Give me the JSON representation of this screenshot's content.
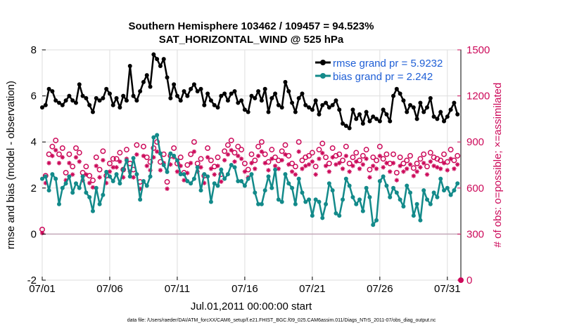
{
  "chart_data": {
    "type": "line",
    "title_line1": "Southern Hemisphere 103462 / 109457 = 94.523%",
    "title_line2": "SAT_HORIZONTAL_WIND @ 525 hPa",
    "xlabel": "Jul.01,2011 00:00:00 start",
    "ylabel_left": "rmse and bias (model - observation)",
    "ylabel_right": "# of obs: o=possible; ×=assimilated",
    "footer": "data file: /Users/raeder/DAI/ATM_forcXX/CAM6_setup/f.e21.FHIST_BGC.f09_025.CAM6assim.011/Diags_NTrS_2011-07/obs_diag_output.nc",
    "x_tick_labels": [
      "07/01",
      "07/06",
      "07/11",
      "07/16",
      "07/21",
      "07/26",
      "07/31"
    ],
    "x_tick_days": [
      1,
      6,
      11,
      16,
      21,
      26,
      31
    ],
    "xlim": [
      1,
      32
    ],
    "ylim_left": [
      -2,
      8
    ],
    "y_ticks_left": [
      -2,
      0,
      2,
      4,
      6,
      8
    ],
    "ylim_right": [
      0,
      1500
    ],
    "y_ticks_right": [
      0,
      300,
      600,
      900,
      1200,
      1500
    ],
    "legend": [
      {
        "label": "rmse grand pr = 5.9232",
        "color": "#000000"
      },
      {
        "label": "bias grand pr = 2.242",
        "color": "#138a8a"
      }
    ],
    "colors": {
      "rmse": "#000000",
      "bias": "#138a8a",
      "obs": "#cc0a5a",
      "zero_line": "#c4a9b9"
    },
    "series_days": [
      1,
      1.25,
      1.5,
      1.75,
      2,
      2.25,
      2.5,
      2.75,
      3,
      3.25,
      3.5,
      3.75,
      4,
      4.25,
      4.5,
      4.75,
      5,
      5.25,
      5.5,
      5.75,
      6,
      6.25,
      6.5,
      6.75,
      7,
      7.25,
      7.5,
      7.75,
      8,
      8.25,
      8.5,
      8.75,
      9,
      9.25,
      9.5,
      9.75,
      10,
      10.25,
      10.5,
      10.75,
      11,
      11.25,
      11.5,
      11.75,
      12,
      12.25,
      12.5,
      12.75,
      13,
      13.25,
      13.5,
      13.75,
      14,
      14.25,
      14.5,
      14.75,
      15,
      15.25,
      15.5,
      15.75,
      16,
      16.25,
      16.5,
      16.75,
      17,
      17.25,
      17.5,
      17.75,
      18,
      18.25,
      18.5,
      18.75,
      19,
      19.25,
      19.5,
      19.75,
      20,
      20.25,
      20.5,
      20.75,
      21,
      21.25,
      21.5,
      21.75,
      22,
      22.25,
      22.5,
      22.75,
      23,
      23.25,
      23.5,
      23.75,
      24,
      24.25,
      24.5,
      24.75,
      25,
      25.25,
      25.5,
      25.75,
      26,
      26.25,
      26.5,
      26.75,
      27,
      27.25,
      27.5,
      27.75,
      28,
      28.25,
      28.5,
      28.75,
      29,
      29.25,
      29.5,
      29.75,
      30,
      30.25,
      30.5,
      30.75,
      31,
      31.25,
      31.5,
      31.75
    ],
    "series": [
      {
        "name": "rmse",
        "values": [
          5.5,
          5.6,
          6.3,
          6.2,
          5.8,
          5.7,
          5.6,
          5.8,
          6.0,
          5.8,
          5.7,
          6.5,
          6.0,
          5.9,
          5.6,
          5.3,
          5.9,
          5.8,
          5.9,
          6.3,
          6.1,
          5.6,
          5.9,
          5.5,
          6.0,
          5.8,
          7.3,
          6.0,
          5.8,
          6.2,
          6.6,
          6.9,
          6.4,
          7.8,
          7.6,
          7.3,
          7.6,
          6.8,
          5.9,
          6.5,
          6.0,
          5.8,
          6.2,
          6.0,
          6.3,
          6.5,
          6.2,
          6.3,
          5.6,
          6.1,
          5.8,
          5.6,
          5.5,
          6.0,
          6.1,
          5.8,
          6.1,
          6.2,
          5.7,
          5.8,
          5.4,
          5.3,
          6.0,
          5.9,
          6.2,
          5.8,
          6.3,
          5.3,
          5.9,
          6.1,
          5.6,
          5.5,
          6.6,
          6.2,
          5.7,
          5.3,
          5.9,
          6.1,
          5.6,
          5.5,
          5.4,
          5.8,
          5.2,
          5.6,
          5.7,
          5.5,
          5.6,
          5.8,
          5.4,
          4.8,
          4.7,
          4.6,
          5.4,
          5.0,
          5.2,
          4.8,
          5.3,
          4.9,
          5.1,
          5.0,
          4.9,
          5.4,
          5.2,
          4.9,
          6.0,
          6.3,
          6.1,
          5.8,
          5.3,
          5.6,
          5.5,
          5.0,
          5.7,
          5.3,
          5.5,
          5.9,
          5.1,
          5.0,
          5.3,
          4.9,
          5.1,
          5.4,
          5.7,
          5.2,
          5.3,
          5.4
        ]
      },
      {
        "name": "bias",
        "values": [
          2.4,
          2.5,
          1.9,
          2.6,
          2.4,
          1.3,
          2.0,
          2.2,
          2.5,
          1.8,
          2.2,
          2.0,
          2.5,
          1.8,
          1.6,
          1.0,
          2.0,
          1.3,
          1.7,
          2.7,
          2.5,
          2.3,
          2.6,
          2.2,
          2.8,
          3.2,
          2.5,
          3.3,
          2.6,
          1.5,
          2.3,
          2.1,
          2.5,
          4.2,
          4.3,
          3.5,
          3.0,
          2.7,
          3.5,
          3.4,
          3.2,
          2.6,
          2.6,
          2.3,
          2.2,
          2.4,
          2.9,
          1.9,
          2.6,
          2.5,
          1.4,
          2.2,
          2.1,
          2.8,
          2.4,
          2.6,
          3.0,
          2.9,
          2.3,
          2.3,
          2.1,
          2.4,
          2.6,
          1.8,
          1.3,
          1.3,
          1.9,
          2.5,
          2.0,
          2.8,
          1.5,
          1.4,
          2.6,
          2.2,
          2.0,
          1.3,
          2.4,
          1.8,
          1.4,
          1.5,
          0.8,
          1.5,
          1.4,
          0.7,
          1.3,
          2.2,
          1.9,
          0.9,
          0.8,
          1.5,
          2.4,
          2.1,
          1.6,
          1.3,
          1.5,
          1.0,
          2.0,
          1.6,
          0.4,
          0.6,
          2.3,
          2.5,
          2.1,
          1.6,
          2.0,
          1.8,
          1.5,
          1.2,
          2.1,
          1.8,
          0.8,
          1.3,
          0.6,
          1.9,
          1.5,
          1.3,
          1.8,
          1.6,
          2.4,
          1.9,
          2.0,
          1.7,
          1.9,
          2.2,
          2.4,
          1.9
        ]
      },
      {
        "name": "obs_possible",
        "values": [
          330,
          680,
          820,
          870,
          910,
          820,
          860,
          700,
          820,
          740,
          860,
          830,
          700,
          740,
          680,
          650,
          800,
          720,
          840,
          680,
          760,
          790,
          790,
          830,
          720,
          850,
          760,
          720,
          880,
          640,
          870,
          800,
          770,
          860,
          900,
          770,
          820,
          640,
          810,
          860,
          760,
          800,
          700,
          750,
          820,
          900,
          760,
          790,
          680,
          860,
          780,
          740,
          800,
          690,
          840,
          880,
          910,
          830,
          870,
          850,
          760,
          720,
          820,
          780,
          870,
          900,
          820,
          770,
          850,
          800,
          780,
          840,
          880,
          810,
          760,
          740,
          900,
          780,
          800,
          810,
          830,
          740,
          850,
          890,
          800,
          760,
          860,
          810,
          820,
          780,
          870,
          760,
          800,
          830,
          780,
          810,
          850,
          720,
          800,
          780,
          870,
          790,
          820,
          760,
          820,
          700,
          800,
          760,
          780,
          810,
          730,
          760,
          790,
          820,
          740,
          830,
          800,
          790,
          780,
          820,
          770,
          850,
          780,
          810,
          760,
          800,
          820,
          780
        ]
      }
    ]
  }
}
